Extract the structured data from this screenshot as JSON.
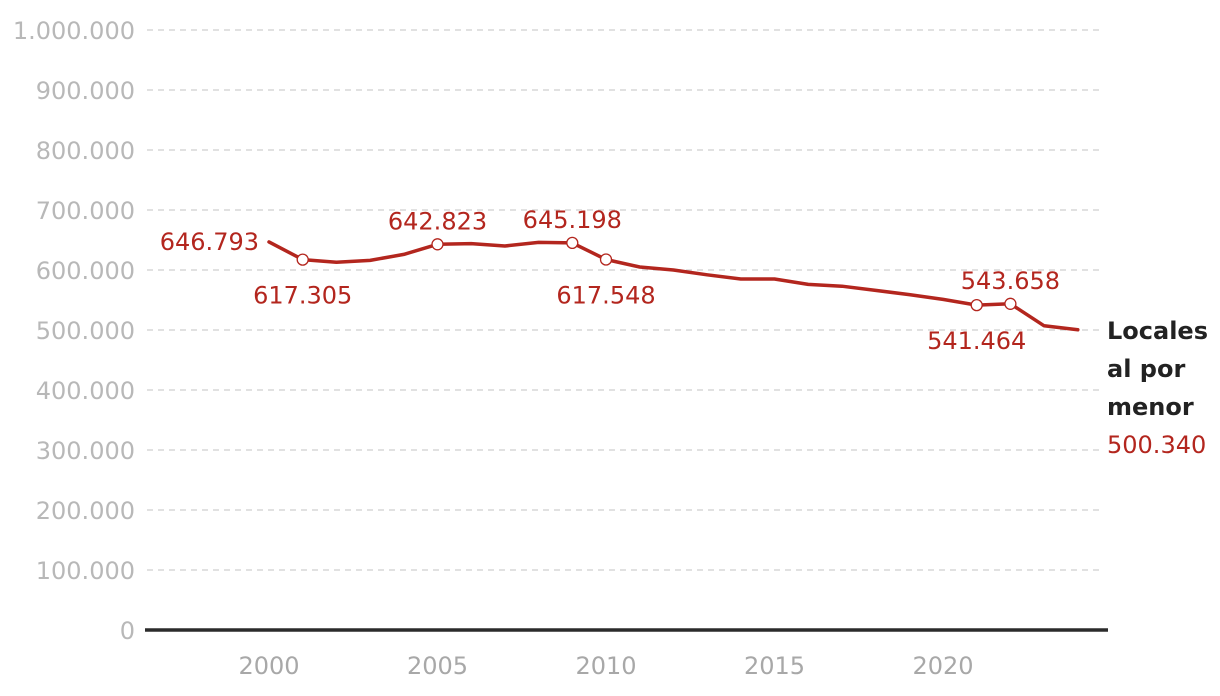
{
  "chart_data": {
    "type": "line",
    "title": "",
    "xlabel": "",
    "ylabel": "",
    "xlim": [
      1996,
      2024.6
    ],
    "ylim": [
      0,
      1000000
    ],
    "y_ticks": [
      0,
      100000,
      200000,
      300000,
      400000,
      500000,
      600000,
      700000,
      800000,
      900000,
      1000000
    ],
    "y_tick_labels": [
      "0",
      "100.000",
      "200.000",
      "300.000",
      "400.000",
      "500.000",
      "600.000",
      "700.000",
      "800.000",
      "900.000",
      "1.000.000"
    ],
    "x_ticks": [
      2000,
      2005,
      2010,
      2015,
      2020
    ],
    "x_tick_labels": [
      "2000",
      "2005",
      "2010",
      "2015",
      "2020"
    ],
    "grid": "horizontal dashed",
    "color": "#b3261e",
    "series": [
      {
        "name": "Locales al por menor",
        "name_lines": [
          "Locales",
          "al por",
          "menor"
        ],
        "end_label": "500.340",
        "x": [
          2000,
          2001,
          2002,
          2003,
          2004,
          2005,
          2006,
          2007,
          2008,
          2009,
          2010,
          2011,
          2012,
          2013,
          2014,
          2015,
          2016,
          2017,
          2018,
          2019,
          2020,
          2021,
          2022,
          2023,
          2024
        ],
        "y": [
          646793,
          617305,
          613000,
          616000,
          626000,
          642823,
          644000,
          640000,
          646000,
          645198,
          617548,
          605000,
          600000,
          592000,
          585000,
          585000,
          576000,
          573000,
          566000,
          559000,
          551000,
          541464,
          543658,
          507000,
          500340
        ]
      }
    ],
    "annotations": [
      {
        "x": 2000,
        "y": 646793,
        "text": "646.793",
        "position": "left",
        "marker": false
      },
      {
        "x": 2001,
        "y": 617305,
        "text": "617.305",
        "position": "below",
        "marker": true
      },
      {
        "x": 2005,
        "y": 642823,
        "text": "642.823",
        "position": "above",
        "marker": true
      },
      {
        "x": 2009,
        "y": 645198,
        "text": "645.198",
        "position": "above",
        "marker": true
      },
      {
        "x": 2010,
        "y": 617548,
        "text": "617.548",
        "position": "below",
        "marker": true
      },
      {
        "x": 2021,
        "y": 541464,
        "text": "541.464",
        "position": "below",
        "marker": true
      },
      {
        "x": 2022,
        "y": 543658,
        "text": "543.658",
        "position": "above",
        "marker": true
      }
    ]
  }
}
